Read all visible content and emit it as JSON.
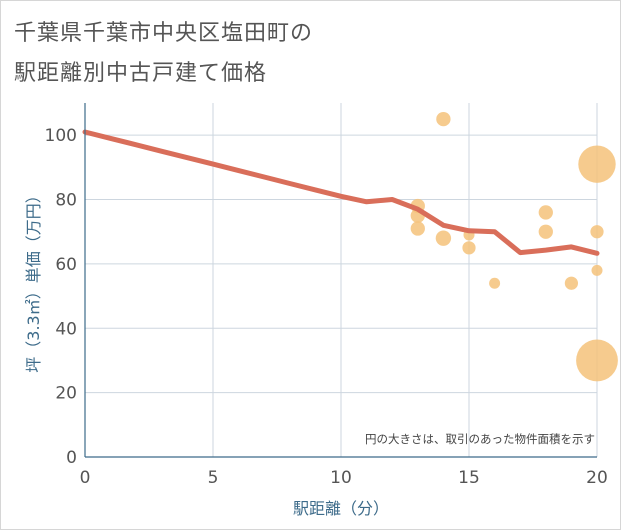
{
  "page": {
    "title_line1": "千葉県千葉市中央区塩田町の",
    "title_line2": "駅距離別中古戸建て価格"
  },
  "chart_data": {
    "type": "scatter",
    "title": "千葉県千葉市中央区塩田町の駅距離別中古戸建て価格",
    "xlabel": "駅距離（分）",
    "ylabel": "坪（3.3㎡）単価（万円）",
    "xlim": [
      0,
      20
    ],
    "ylim": [
      0,
      110
    ],
    "xticks": [
      0,
      5,
      10,
      15,
      20
    ],
    "yticks": [
      0,
      20,
      40,
      60,
      80,
      100
    ],
    "grid": true,
    "annotation": "円の大きさは、取引のあった物件面積を示す",
    "points": [
      {
        "x": 13,
        "y": 78,
        "size": 1.3
      },
      {
        "x": 13,
        "y": 75,
        "size": 1.3
      },
      {
        "x": 13,
        "y": 71,
        "size": 1.3
      },
      {
        "x": 14,
        "y": 105,
        "size": 1.3
      },
      {
        "x": 14,
        "y": 68,
        "size": 1.4
      },
      {
        "x": 15,
        "y": 69,
        "size": 1.0
      },
      {
        "x": 15,
        "y": 65,
        "size": 1.2
      },
      {
        "x": 16,
        "y": 54,
        "size": 1.0
      },
      {
        "x": 18,
        "y": 76,
        "size": 1.3
      },
      {
        "x": 18,
        "y": 70,
        "size": 1.3
      },
      {
        "x": 19,
        "y": 54,
        "size": 1.2
      },
      {
        "x": 20,
        "y": 91,
        "size": 3.4
      },
      {
        "x": 20,
        "y": 70,
        "size": 1.2
      },
      {
        "x": 20,
        "y": 58,
        "size": 1.0
      },
      {
        "x": 20,
        "y": 30,
        "size": 3.8
      }
    ],
    "trend": {
      "name": "trend",
      "x": [
        0,
        1,
        2,
        3,
        4,
        5,
        6,
        7,
        8,
        9,
        10,
        11,
        12,
        13,
        14,
        15,
        16,
        17,
        18,
        19,
        20
      ],
      "y": [
        101,
        99,
        97,
        95,
        93,
        91,
        89,
        87,
        85,
        83,
        81,
        79.3,
        80,
        77,
        72,
        70.3,
        70,
        63.5,
        64.3,
        65.3,
        63.3
      ]
    },
    "colors": {
      "point": "#f5c27a",
      "trend": "#d96e5a",
      "grid": "#cdd6df",
      "axis": "#3d6b8a"
    }
  }
}
